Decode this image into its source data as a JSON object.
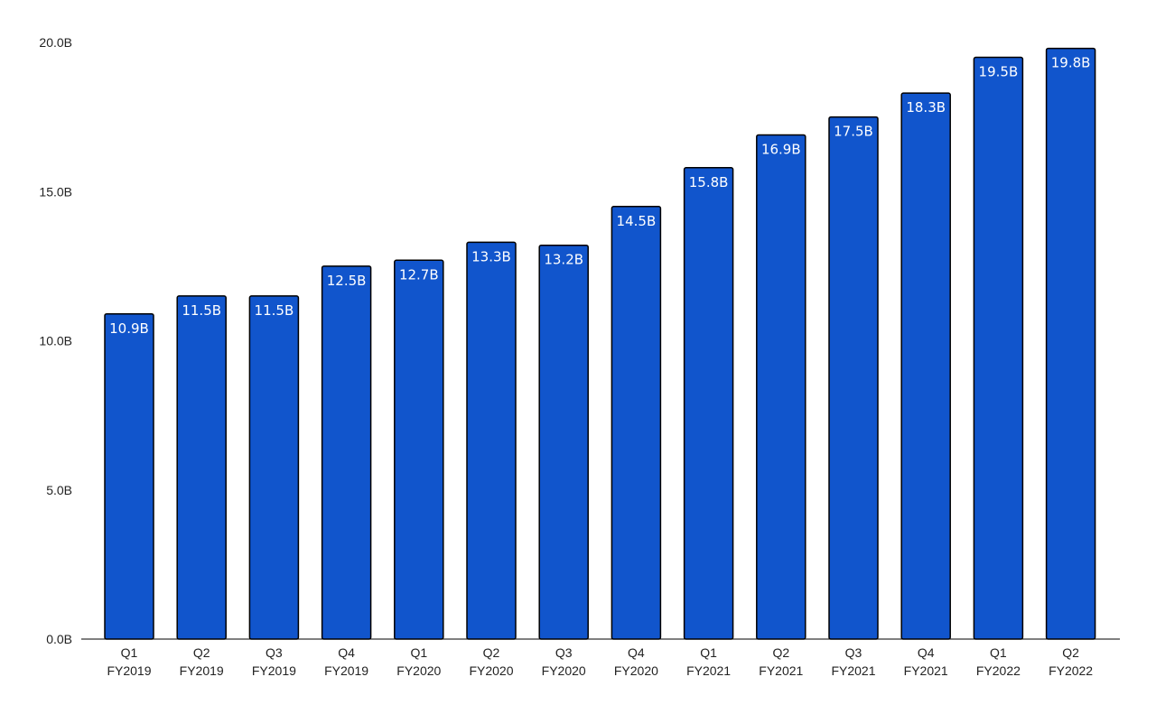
{
  "chart_data": {
    "type": "bar",
    "categories": [
      [
        "Q1",
        "FY2019"
      ],
      [
        "Q2",
        "FY2019"
      ],
      [
        "Q3",
        "FY2019"
      ],
      [
        "Q4",
        "FY2019"
      ],
      [
        "Q1",
        "FY2020"
      ],
      [
        "Q2",
        "FY2020"
      ],
      [
        "Q3",
        "FY2020"
      ],
      [
        "Q4",
        "FY2020"
      ],
      [
        "Q1",
        "FY2021"
      ],
      [
        "Q2",
        "FY2021"
      ],
      [
        "Q3",
        "FY2021"
      ],
      [
        "Q4",
        "FY2021"
      ],
      [
        "Q1",
        "FY2022"
      ],
      [
        "Q2",
        "FY2022"
      ]
    ],
    "values": [
      10.9,
      11.5,
      11.5,
      12.5,
      12.7,
      13.3,
      13.2,
      14.5,
      15.8,
      16.9,
      17.5,
      18.3,
      19.5,
      19.8
    ],
    "value_labels": [
      "10.9B",
      "11.5B",
      "11.5B",
      "12.5B",
      "12.7B",
      "13.3B",
      "13.2B",
      "14.5B",
      "15.8B",
      "16.9B",
      "17.5B",
      "18.3B",
      "19.5B",
      "19.8B"
    ],
    "yticks": [
      0,
      5,
      10,
      15,
      20
    ],
    "ytick_labels": [
      "0.0B",
      "5.0B",
      "10.0B",
      "15.0B",
      "20.0B"
    ],
    "ylim": [
      0,
      20
    ],
    "grid": false,
    "bar_color": "#1155cc",
    "bar_edge_color": "#000000"
  }
}
